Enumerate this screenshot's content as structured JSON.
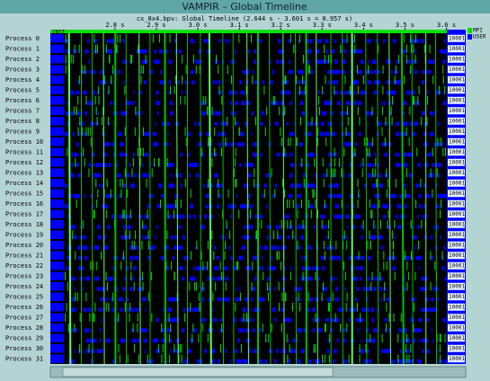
{
  "window": {
    "title": "VAMPIR – Global Timeline"
  },
  "timeline": {
    "subtitle": "cx_8x4.bpv: Global Timeline (2.644 s - 3.601 s = 0.957 s)",
    "start": 2.644,
    "end": 3.601,
    "ticks": [
      {
        "value": 2.8,
        "label": "2.8 s"
      },
      {
        "value": 2.9,
        "label": "2.9 s"
      },
      {
        "value": 3.0,
        "label": "3.0 s"
      },
      {
        "value": 3.1,
        "label": "3.1 s"
      },
      {
        "value": 3.2,
        "label": "3.2 s"
      },
      {
        "value": 3.3,
        "label": "3.3 s"
      },
      {
        "value": 3.4,
        "label": "3.4 s"
      },
      {
        "value": 3.5,
        "label": "3.5 s"
      },
      {
        "value": 3.6,
        "label": "3.6 s"
      }
    ],
    "start_label": "INIT",
    "processes": [
      "Process 0",
      "Process 1",
      "Process 2",
      "Process 3",
      "Process 4",
      "Process 5",
      "Process 6",
      "Process 7",
      "Process 8",
      "Process 9",
      "Process 10",
      "Process 11",
      "Process 12",
      "Process 13",
      "Process 14",
      "Process 15",
      "Process 16",
      "Process 17",
      "Process 18",
      "Process 19",
      "Process 20",
      "Process 21",
      "Process 22",
      "Process 23",
      "Process 24",
      "Process 25",
      "Process 26",
      "Process 27",
      "Process 28",
      "Process 29",
      "Process 30",
      "Process 31"
    ],
    "end_labels": [
      "10001",
      "10001",
      "10001",
      "10001",
      "10001",
      "10001",
      "10001",
      "10001",
      "10001",
      "10001",
      "10001",
      "10001",
      "10001",
      "10001",
      "10001",
      "10001",
      "10001",
      "10001",
      "10001",
      "10001",
      "10001",
      "10001",
      "10001",
      "10001",
      "10001",
      "10001",
      "10001",
      "10001",
      "10001",
      "10001",
      "10001",
      "10001"
    ]
  },
  "legend": [
    {
      "name": "MPI",
      "color": "#00e000"
    },
    {
      "name": "USER",
      "color": "#0000ff"
    }
  ]
}
